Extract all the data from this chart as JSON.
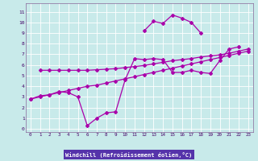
{
  "background_color": "#c8eaea",
  "grid_color": "#aadddd",
  "line_color": "#aa00aa",
  "xlabel": "Windchill (Refroidissement éolien,°C)",
  "xlabel_bg": "#6633aa",
  "xlabel_fg": "#ffffff",
  "tick_color": "#440066",
  "x_ticks": [
    0,
    1,
    2,
    3,
    4,
    5,
    6,
    7,
    8,
    9,
    10,
    11,
    12,
    13,
    14,
    15,
    16,
    17,
    18,
    19,
    20,
    21,
    22,
    23
  ],
  "y_ticks": [
    0,
    1,
    2,
    3,
    4,
    5,
    6,
    7,
    8,
    9,
    10,
    11
  ],
  "xlim": [
    -0.5,
    23.5
  ],
  "ylim": [
    -0.3,
    11.8
  ],
  "s1_x": [
    0,
    1,
    2,
    3,
    4,
    5,
    6,
    7,
    8,
    9,
    10,
    11,
    12,
    13,
    14,
    15,
    16,
    17,
    18,
    19,
    20,
    21,
    22
  ],
  "s1_y": [
    2.8,
    3.1,
    3.2,
    3.5,
    3.4,
    3.0,
    0.3,
    1.0,
    1.5,
    1.6,
    4.6,
    6.6,
    6.5,
    6.6,
    6.5,
    5.3,
    5.3,
    5.5,
    5.3,
    5.2,
    6.4,
    7.5,
    7.7
  ],
  "s2_x": [
    12,
    13,
    14,
    15,
    16,
    17,
    18
  ],
  "s2_y": [
    9.2,
    10.1,
    9.9,
    10.7,
    10.4,
    10.0,
    9.0
  ],
  "s3_x": [
    0,
    1,
    2,
    3,
    4,
    5,
    6,
    7,
    8,
    9,
    10,
    11,
    12,
    13,
    14,
    15,
    16,
    17,
    18,
    19,
    20,
    21,
    22,
    23
  ],
  "s3_y": [
    2.8,
    3.0,
    3.2,
    3.4,
    3.6,
    3.8,
    4.0,
    4.1,
    4.3,
    4.5,
    4.7,
    4.9,
    5.1,
    5.3,
    5.5,
    5.7,
    5.9,
    6.1,
    6.3,
    6.5,
    6.7,
    6.9,
    7.1,
    7.3
  ],
  "s4_x": [
    1,
    2,
    3,
    4,
    5,
    6,
    7,
    8,
    9,
    10,
    11,
    12,
    13,
    14,
    15,
    16,
    17,
    18,
    19,
    20,
    21,
    22,
    23
  ],
  "s4_y": [
    5.5,
    5.5,
    5.5,
    5.5,
    5.5,
    5.5,
    5.55,
    5.6,
    5.65,
    5.75,
    5.85,
    5.95,
    6.1,
    6.25,
    6.4,
    6.5,
    6.6,
    6.75,
    6.85,
    6.95,
    7.1,
    7.3,
    7.5
  ]
}
